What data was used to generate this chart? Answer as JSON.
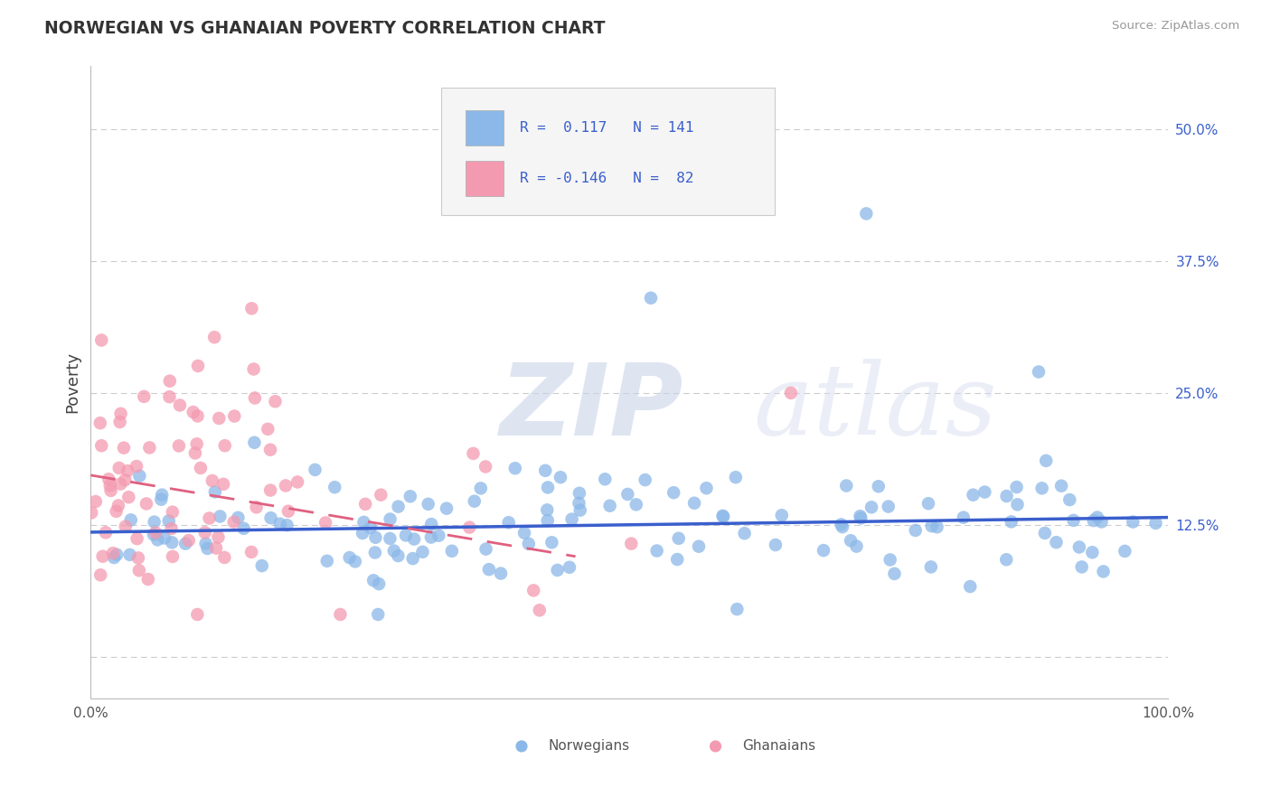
{
  "title": "NORWEGIAN VS GHANAIAN POVERTY CORRELATION CHART",
  "source": "Source: ZipAtlas.com",
  "ylabel": "Poverty",
  "xlim": [
    0,
    1
  ],
  "ylim": [
    -0.04,
    0.56
  ],
  "yticks": [
    0.0,
    0.125,
    0.25,
    0.375,
    0.5
  ],
  "ytick_labels": [
    "",
    "12.5%",
    "25.0%",
    "37.5%",
    "50.0%"
  ],
  "norwegian_R": 0.117,
  "norwegian_N": 141,
  "ghanaian_R": -0.146,
  "ghanaian_N": 82,
  "norwegian_color": "#8bb8e8",
  "ghanaian_color": "#f49ab0",
  "trend_norwegian_color": "#3a5fcd",
  "trend_ghanaian_color": "#e06080",
  "background_color": "#ffffff",
  "grid_color": "#cccccc",
  "watermark_zip": "#c8d4e8",
  "watermark_atlas": "#d8dff0",
  "legend_color": "#3a5fcd",
  "nor_trend_x": [
    0.0,
    1.0
  ],
  "nor_trend_y": [
    0.118,
    0.132
  ],
  "gha_trend_x": [
    0.0,
    0.45
  ],
  "gha_trend_y": [
    0.172,
    0.095
  ]
}
